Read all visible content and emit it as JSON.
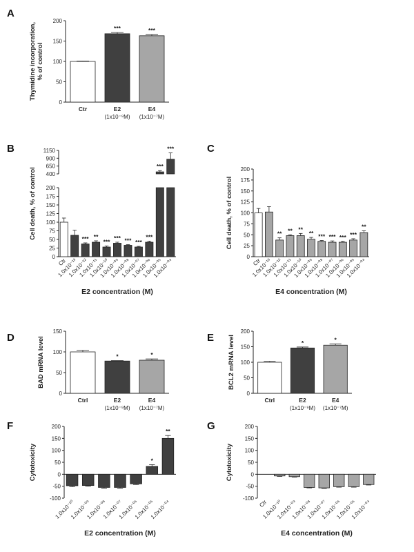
{
  "chart_data": [
    {
      "panel": "A",
      "type": "bar",
      "categories": [
        "Ctr",
        "E2",
        "E4"
      ],
      "sublabels": [
        "",
        "(1x10⁻⁹M)",
        "(1x10⁻⁷M)"
      ],
      "values": [
        100,
        168,
        163
      ],
      "errors": [
        1,
        3,
        3
      ],
      "significance": [
        "",
        "***",
        "***"
      ],
      "colors": [
        "#ffffff",
        "#404040",
        "#a6a6a6"
      ],
      "ylabel": [
        "Thymidine incorporation,",
        "% of control"
      ],
      "yticks": [
        0,
        50,
        100,
        150,
        200
      ],
      "ylim": [
        0,
        200
      ]
    },
    {
      "panel": "B",
      "type": "bar",
      "categories": [
        "Ctr",
        "1.0x10⁻¹³",
        "1.0x10⁻¹²",
        "1.0x10⁻¹¹",
        "1.0x10⁻¹⁰",
        "1.0x10⁻⁰⁹",
        "1.0x10⁻⁰⁸",
        "1.0x10⁻⁰⁷",
        "1.0x10⁻⁰⁶",
        "1.0x10⁻⁰⁵",
        "1.0x10⁻⁰⁴"
      ],
      "values": [
        100,
        62,
        37,
        42,
        28,
        39,
        33,
        28,
        42,
        465,
        870
      ],
      "errors": [
        12,
        15,
        3,
        4,
        3,
        3,
        2,
        2,
        3,
        40,
        200
      ],
      "significance": [
        "",
        "",
        "***",
        "**",
        "***",
        "***",
        "***",
        "***",
        "***",
        "***",
        "***"
      ],
      "colors": [
        "#ffffff",
        "#404040",
        "#404040",
        "#404040",
        "#404040",
        "#404040",
        "#404040",
        "#404040",
        "#404040",
        "#404040",
        "#404040"
      ],
      "ylabel": "Cell death, % of control",
      "xlabel": "E2 concentration (M)",
      "yticks_lower": [
        0,
        25,
        50,
        75,
        100,
        125,
        150,
        175,
        200
      ],
      "yticks_upper": [
        400,
        650,
        900,
        1150
      ],
      "ylim": [
        0,
        1150
      ]
    },
    {
      "panel": "C",
      "type": "bar",
      "categories": [
        "Ctr",
        "1.0x10⁻¹³",
        "1.0x10⁻¹²",
        "1.0x10⁻¹¹",
        "1.0x10⁻¹⁰",
        "1.0x10⁻⁰⁹",
        "1.0x10⁻⁰⁸",
        "1.0x10⁻⁰⁷",
        "1.0x10⁻⁰⁶",
        "1.0x10⁻⁰⁵",
        "1.0x10⁻⁰⁴"
      ],
      "values": [
        100,
        102,
        38,
        48,
        48,
        40,
        35,
        33,
        33,
        38,
        55
      ],
      "errors": [
        10,
        12,
        5,
        2,
        5,
        4,
        2,
        3,
        2,
        3,
        4
      ],
      "significance": [
        "",
        "",
        "**",
        "**",
        "**",
        "**",
        "***",
        "***",
        "***",
        "***",
        "**"
      ],
      "colors": [
        "#ffffff",
        "#a6a6a6",
        "#a6a6a6",
        "#a6a6a6",
        "#a6a6a6",
        "#a6a6a6",
        "#a6a6a6",
        "#a6a6a6",
        "#a6a6a6",
        "#a6a6a6",
        "#a6a6a6"
      ],
      "ylabel": "Cell death, % of control",
      "xlabel": "E4 concentration (M)",
      "yticks": [
        0,
        25,
        50,
        75,
        100,
        125,
        150,
        175,
        200
      ],
      "ylim": [
        0,
        200
      ]
    },
    {
      "panel": "D",
      "type": "bar",
      "categories": [
        "Ctrl",
        "E2",
        "E4"
      ],
      "sublabels": [
        "",
        "(1x10⁻⁹M)",
        "(1x10⁻⁷M)"
      ],
      "values": [
        100,
        78,
        80
      ],
      "errors": [
        4,
        1,
        3
      ],
      "significance": [
        "",
        "*",
        "*"
      ],
      "colors": [
        "#ffffff",
        "#404040",
        "#a6a6a6"
      ],
      "ylabel": "BAD mRNA level",
      "yticks": [
        0,
        50,
        100,
        150
      ],
      "ylim": [
        0,
        150
      ]
    },
    {
      "panel": "E",
      "type": "bar",
      "categories": [
        "Ctrl",
        "E2",
        "E4"
      ],
      "sublabels": [
        "",
        "(1x10⁻⁹M)",
        "(1x10⁻⁷M)"
      ],
      "values": [
        100,
        146,
        155
      ],
      "errors": [
        3,
        3,
        4
      ],
      "significance": [
        "",
        "*",
        "*"
      ],
      "colors": [
        "#ffffff",
        "#404040",
        "#a6a6a6"
      ],
      "ylabel": "BCL2 mRNA level",
      "yticks": [
        0,
        50,
        100,
        150,
        200
      ],
      "ylim": [
        0,
        200
      ]
    },
    {
      "panel": "F",
      "type": "bar",
      "categories": [
        "1.0x10⁻¹⁰",
        "1.0x10⁻⁰⁹",
        "1.0x10⁻⁰⁸",
        "1.0x10⁻⁰⁷",
        "1.0x10⁻⁰⁶",
        "1.0x10⁻⁰⁵",
        "1.0x10⁻⁰⁴"
      ],
      "values": [
        -48,
        -47,
        -55,
        -55,
        -40,
        33,
        150
      ],
      "errors": [
        4,
        3,
        3,
        3,
        3,
        7,
        12
      ],
      "significance": [
        "",
        "",
        "",
        "",
        "",
        "*",
        "**"
      ],
      "colors": [
        "#404040",
        "#404040",
        "#404040",
        "#404040",
        "#404040",
        "#404040",
        "#404040"
      ],
      "ylabel": "Cytotoxicity",
      "xlabel": "E2 concentration (M)",
      "yticks": [
        -100,
        -50,
        0,
        50,
        100,
        150,
        200
      ],
      "ylim": [
        -100,
        200
      ]
    },
    {
      "panel": "G",
      "type": "bar",
      "categories": [
        "Ctr",
        "1.0x10⁻¹⁰",
        "1.0x10⁻⁰⁹",
        "1.0x10⁻⁰⁸",
        "1.0x10⁻⁰⁷",
        "1.0x10⁻⁰⁶",
        "1.0x10⁻⁰⁵",
        "1.0x10⁻⁰⁴"
      ],
      "values": [
        0,
        -7,
        -10,
        -55,
        -57,
        -52,
        -52,
        -43
      ],
      "errors": [
        0,
        2,
        2,
        2,
        2,
        2,
        2,
        2
      ],
      "significance": [
        "",
        "",
        "",
        "",
        "",
        "",
        "",
        ""
      ],
      "colors": [
        "#a6a6a6",
        "#a6a6a6",
        "#a6a6a6",
        "#a6a6a6",
        "#a6a6a6",
        "#a6a6a6",
        "#a6a6a6",
        "#a6a6a6"
      ],
      "ylabel": "Cytotoxicity",
      "xlabel": "E4 concentration (M)",
      "yticks": [
        -100,
        -50,
        0,
        50,
        100,
        150,
        200
      ],
      "ylim": [
        -100,
        200
      ]
    }
  ]
}
